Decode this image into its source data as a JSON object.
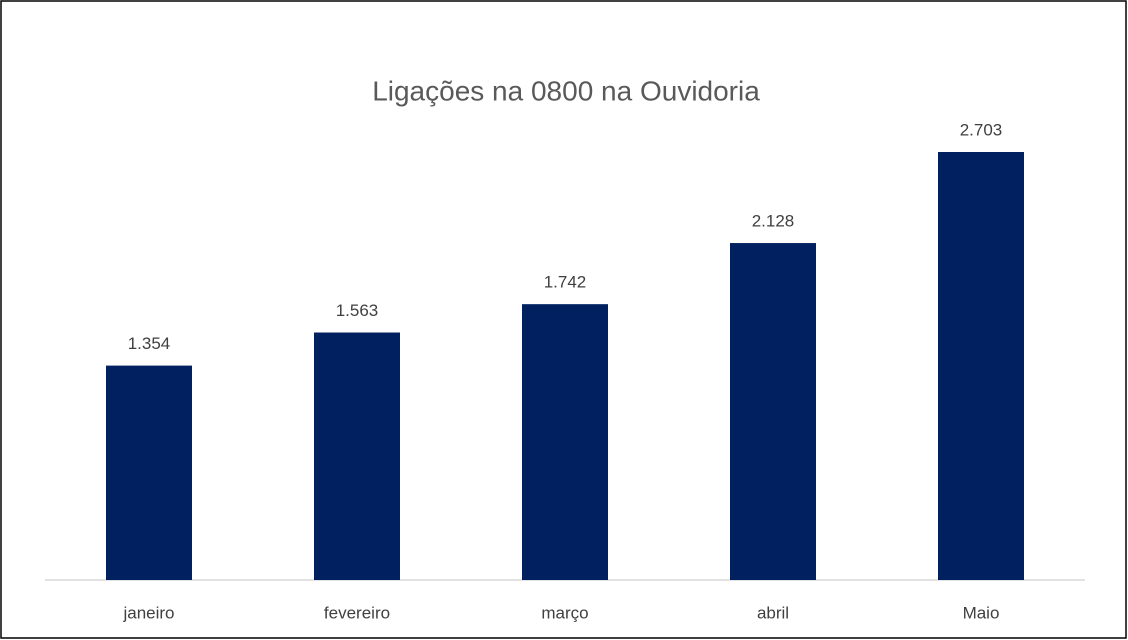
{
  "chart_data": {
    "type": "bar",
    "title": "Ligações na 0800 na Ouvidoria",
    "categories": [
      "janeiro",
      "fevereiro",
      "março",
      "abril",
      "Maio"
    ],
    "values": [
      1354,
      1563,
      1742,
      2128,
      2703
    ],
    "value_labels": [
      "1.354",
      "1.563",
      "1.742",
      "2.128",
      "2.703"
    ],
    "color": "#002060"
  }
}
